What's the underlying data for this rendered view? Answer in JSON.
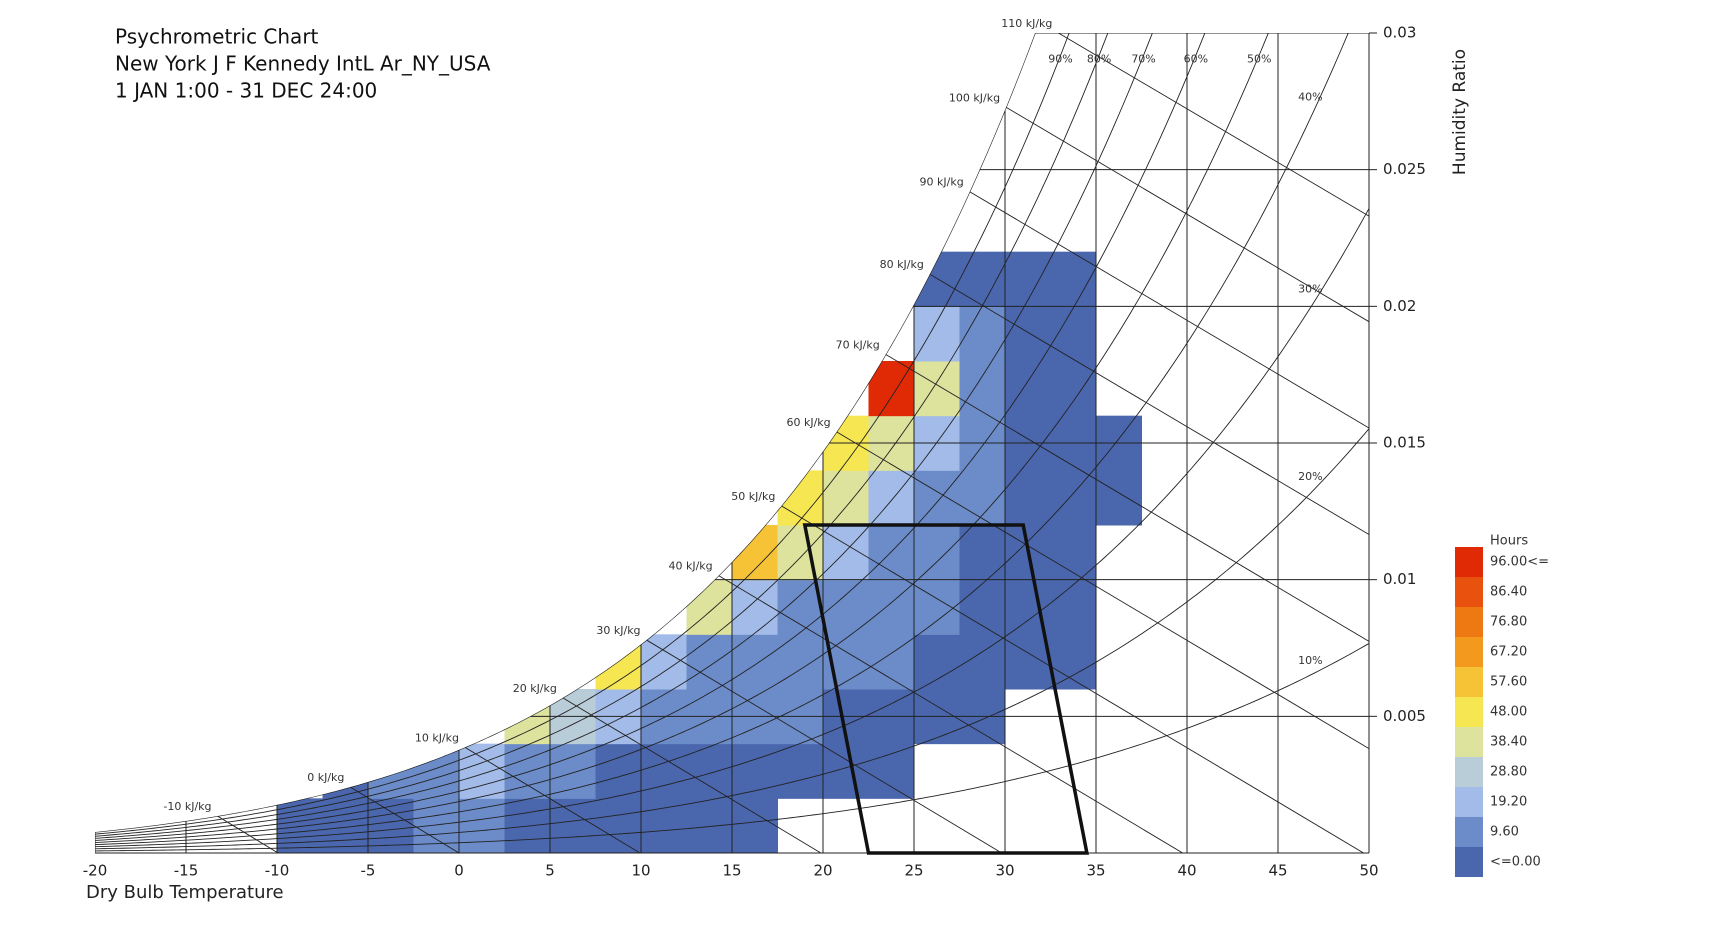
{
  "chart_data": {
    "type": "heatmap",
    "title_lines": [
      "Psychrometric Chart",
      "New York J F Kennedy IntL Ar_NY_USA",
      "1 JAN 1:00 - 31 DEC 24:00"
    ],
    "x_label": "Dry Bulb Temperature",
    "y_label": "Humidity Ratio",
    "xlim": [
      -20,
      50
    ],
    "xticks": [
      -20,
      -15,
      -10,
      -5,
      0,
      5,
      10,
      15,
      20,
      25,
      30,
      35,
      40,
      45,
      50
    ],
    "ylim": [
      0,
      0.03
    ],
    "yticks": [
      0.005,
      0.01,
      0.015,
      0.02,
      0.025,
      0.03
    ],
    "xbins": [
      -20,
      -17.5,
      -15,
      -12.5,
      -10,
      -7.5,
      -5,
      -2.5,
      0,
      2.5,
      5,
      7.5,
      10,
      12.5,
      15,
      17.5,
      20,
      22.5,
      25,
      27.5,
      30,
      32.5,
      35,
      37.5
    ],
    "ybins": [
      0,
      0.002,
      0.004,
      0.006,
      0.008,
      0.01,
      0.012,
      0.014,
      0.016,
      0.018,
      0.02,
      0.022
    ],
    "values": [
      [
        null,
        null,
        null,
        null,
        3,
        6,
        9,
        12,
        10,
        8,
        6,
        4,
        3,
        2,
        2,
        null,
        null,
        null,
        null,
        null,
        null,
        null,
        null
      ],
      [
        null,
        null,
        null,
        null,
        null,
        4,
        10,
        16,
        20,
        14,
        12,
        9,
        8,
        6,
        5,
        3,
        2,
        1,
        null,
        null,
        null,
        null,
        null
      ],
      [
        null,
        null,
        null,
        null,
        null,
        null,
        null,
        null,
        null,
        40,
        30,
        22,
        18,
        15,
        12,
        10,
        8,
        6,
        4,
        2,
        null,
        null,
        null
      ],
      [
        null,
        null,
        null,
        null,
        null,
        null,
        null,
        null,
        null,
        null,
        null,
        50,
        24,
        18,
        16,
        14,
        12,
        10,
        8,
        6,
        3,
        1,
        null
      ],
      [
        null,
        null,
        null,
        null,
        null,
        null,
        null,
        null,
        null,
        null,
        null,
        null,
        null,
        45,
        20,
        18,
        16,
        14,
        10,
        8,
        5,
        2,
        null
      ],
      [
        null,
        null,
        null,
        null,
        null,
        null,
        null,
        null,
        null,
        null,
        null,
        null,
        null,
        null,
        60,
        42,
        20,
        16,
        12,
        9,
        5,
        2,
        null
      ],
      [
        null,
        null,
        null,
        null,
        null,
        null,
        null,
        null,
        null,
        null,
        null,
        null,
        null,
        null,
        null,
        52,
        40,
        22,
        16,
        12,
        6,
        3,
        1
      ],
      [
        null,
        null,
        null,
        null,
        null,
        null,
        null,
        null,
        null,
        null,
        null,
        null,
        null,
        null,
        null,
        null,
        55,
        45,
        20,
        14,
        8,
        4,
        2
      ],
      [
        null,
        null,
        null,
        null,
        null,
        null,
        null,
        null,
        null,
        null,
        null,
        null,
        null,
        null,
        null,
        null,
        null,
        100,
        44,
        16,
        8,
        3,
        null
      ],
      [
        null,
        null,
        null,
        null,
        null,
        null,
        null,
        null,
        null,
        null,
        null,
        null,
        null,
        null,
        null,
        null,
        null,
        null,
        20,
        10,
        5,
        2,
        null
      ],
      [
        null,
        null,
        null,
        null,
        null,
        null,
        null,
        null,
        null,
        null,
        null,
        null,
        null,
        null,
        null,
        null,
        null,
        null,
        8,
        6,
        3,
        1,
        null
      ]
    ],
    "color_scale": {
      "title": "Hours",
      "ticks": [
        {
          "value": 0,
          "label": "<=0.00"
        },
        {
          "value": 9.6,
          "label": "9.60"
        },
        {
          "value": 19.2,
          "label": "19.20"
        },
        {
          "value": 28.8,
          "label": "28.80"
        },
        {
          "value": 38.4,
          "label": "38.40"
        },
        {
          "value": 48,
          "label": "48.00"
        },
        {
          "value": 57.6,
          "label": "57.60"
        },
        {
          "value": 67.2,
          "label": "67.20"
        },
        {
          "value": 76.8,
          "label": "76.80"
        },
        {
          "value": 86.4,
          "label": "86.40"
        },
        {
          "value": 96,
          "label": "96.00<="
        }
      ],
      "colors": [
        "#4a66ad",
        "#6c8cc9",
        "#a2bbe8",
        "#b9cdd9",
        "#dde39c",
        "#f6e752",
        "#f6c236",
        "#f39a1e",
        "#ee7812",
        "#e9520e",
        "#e02a06"
      ]
    },
    "rh_lines": [
      {
        "value": 10,
        "label": "10%"
      },
      {
        "value": 20,
        "label": "20%"
      },
      {
        "value": 30,
        "label": "30%"
      },
      {
        "value": 40,
        "label": "40%"
      },
      {
        "value": 50,
        "label": "50%"
      },
      {
        "value": 60,
        "label": "60%"
      },
      {
        "value": 70,
        "label": "70%"
      },
      {
        "value": 80,
        "label": "80%"
      },
      {
        "value": 90,
        "label": "90%"
      }
    ],
    "enthalpy_lines": [
      {
        "value": -10,
        "label": "-10 kJ/kg"
      },
      {
        "value": 0,
        "label": "0 kJ/kg"
      },
      {
        "value": 10,
        "label": "10 kJ/kg"
      },
      {
        "value": 20,
        "label": "20 kJ/kg"
      },
      {
        "value": 30,
        "label": "30 kJ/kg"
      },
      {
        "value": 40,
        "label": "40 kJ/kg"
      },
      {
        "value": 50,
        "label": "50 kJ/kg"
      },
      {
        "value": 60,
        "label": "60 kJ/kg"
      },
      {
        "value": 70,
        "label": "70 kJ/kg"
      },
      {
        "value": 80,
        "label": "80 kJ/kg"
      },
      {
        "value": 90,
        "label": "90 kJ/kg"
      },
      {
        "value": 100,
        "label": "100 kJ/kg"
      },
      {
        "value": 110,
        "label": "110 kJ/kg"
      }
    ],
    "comfort_zone": {
      "x": [
        19,
        31,
        34.5,
        22.5
      ],
      "y": [
        0.012,
        0.012,
        0,
        0
      ]
    }
  }
}
